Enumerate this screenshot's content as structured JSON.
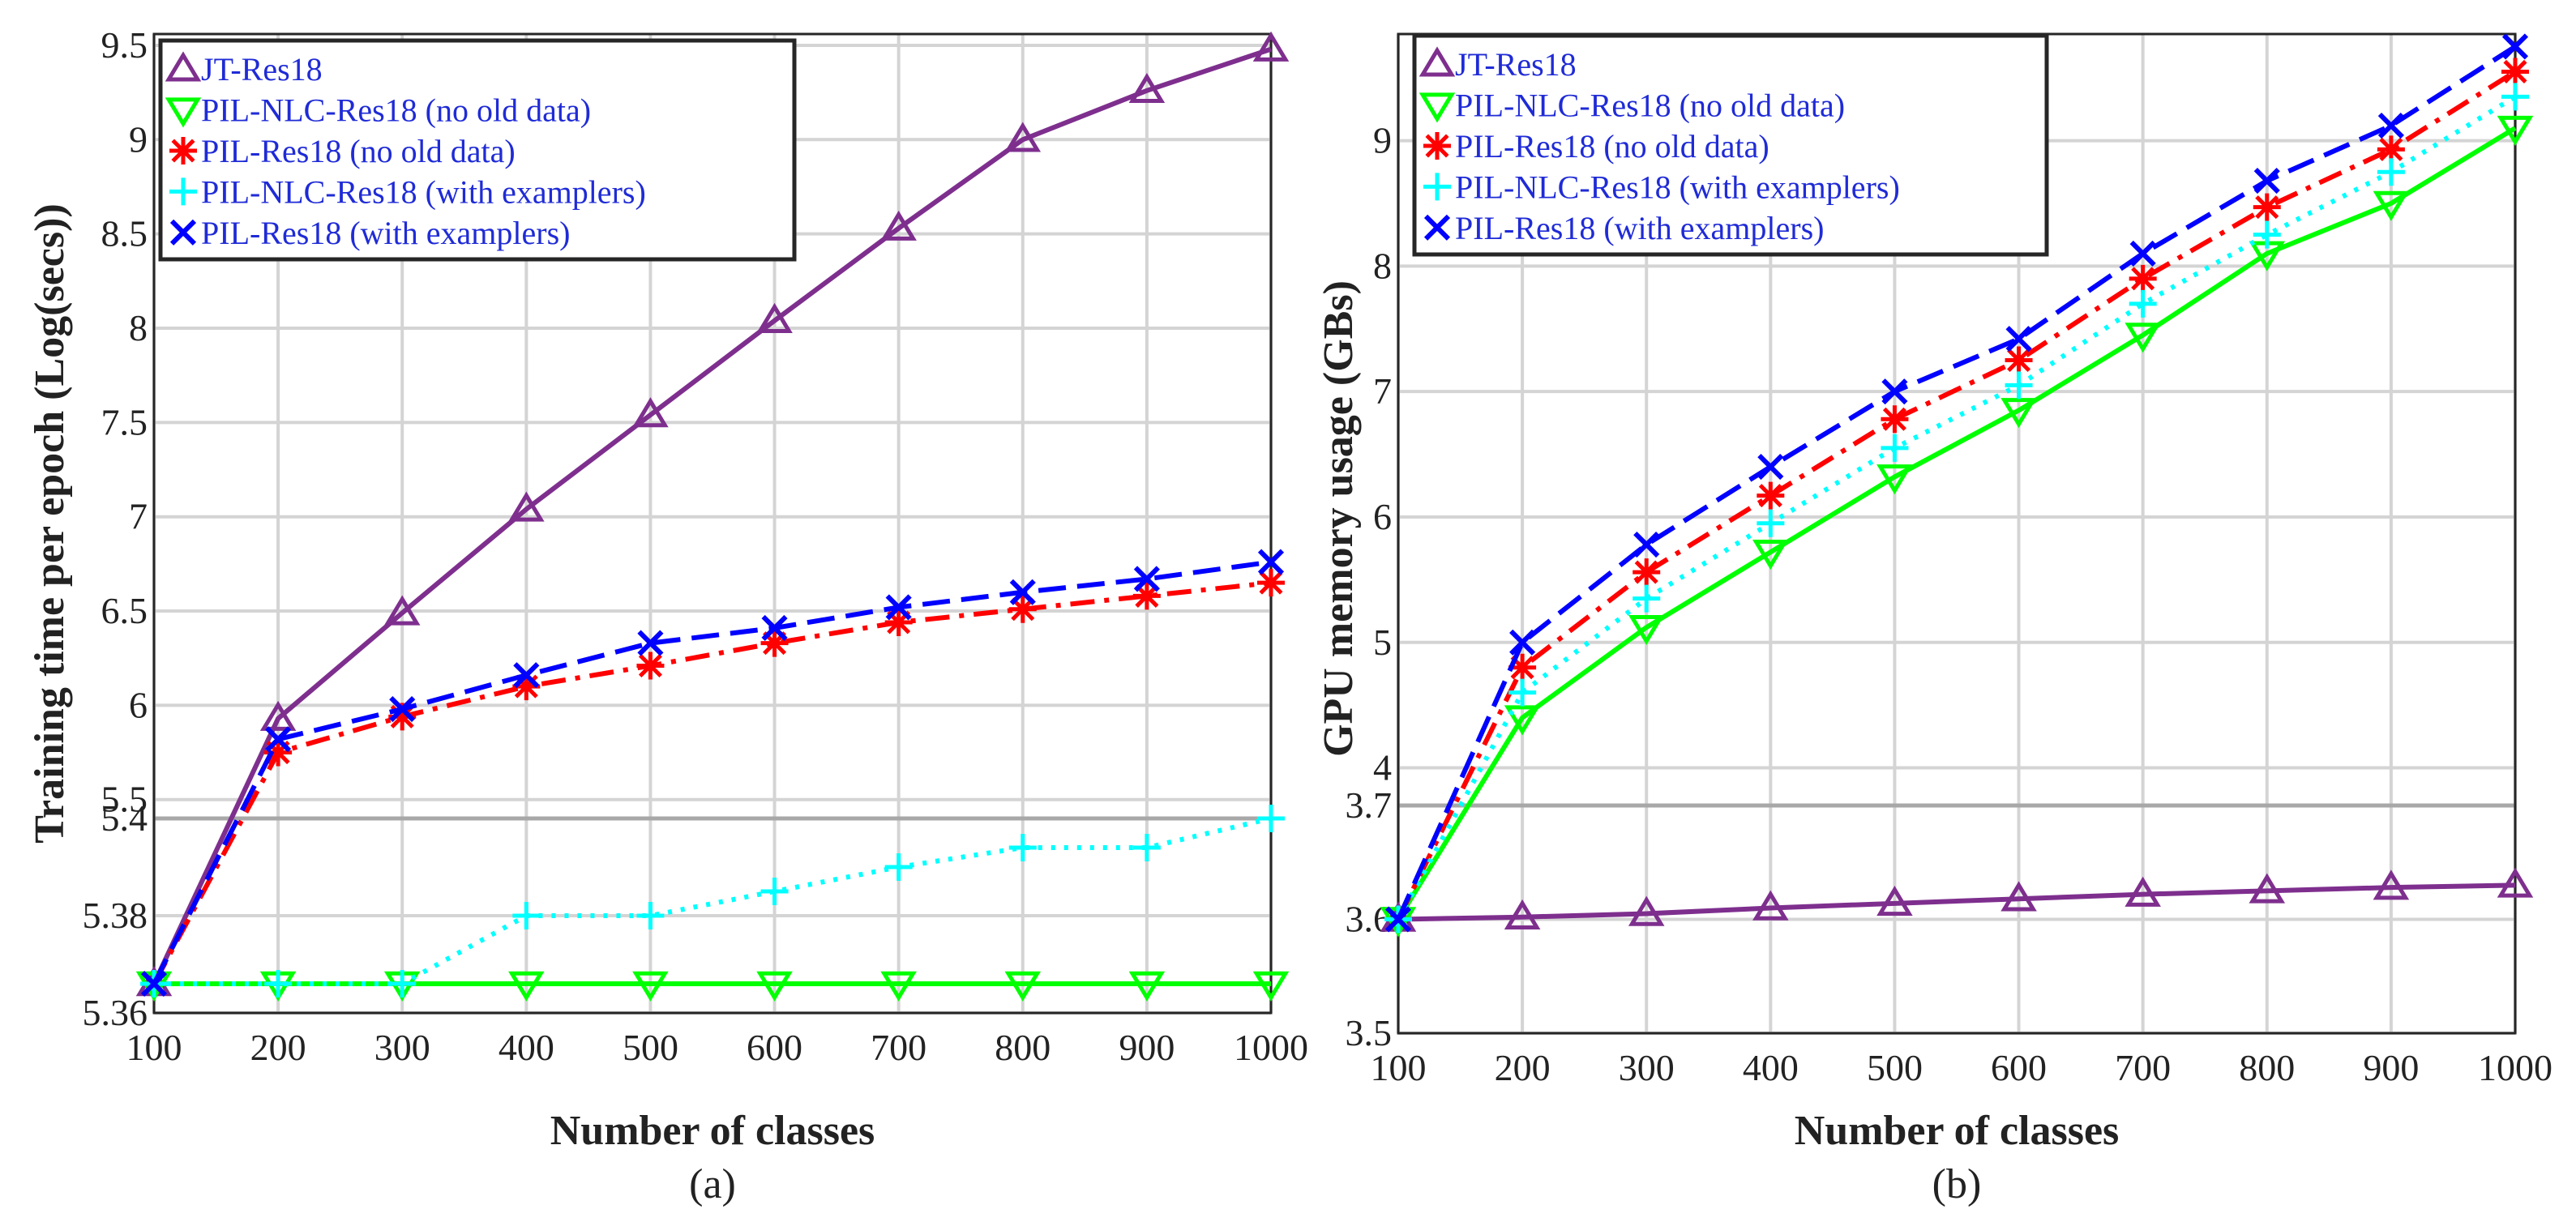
{
  "chart_data": [
    {
      "type": "line",
      "panel": "a",
      "caption": "(a)",
      "xlabel": "Number of classes",
      "ylabel": "Training time per epoch (Log(secs))",
      "x": [
        100,
        200,
        300,
        400,
        500,
        600,
        700,
        800,
        900,
        1000
      ],
      "x_tick_labels": [
        "100",
        "200",
        "300",
        "400",
        "500",
        "600",
        "700",
        "800",
        "900",
        "1000"
      ],
      "y_axis": "broken",
      "y_lower_tick_labels": [
        "5.36",
        "5.38",
        "5.4"
      ],
      "y_upper_tick_labels": [
        "5.5",
        "6",
        "6.5",
        "7",
        "7.5",
        "8",
        "8.5",
        "9",
        "9.5"
      ],
      "grid": true,
      "legend_position": "top-left",
      "series": [
        {
          "name": "JT-Res18",
          "color": "#7e2f8e",
          "marker": "triangle-up",
          "dash": "solid",
          "values": [
            5.366,
            5.93,
            6.49,
            7.04,
            7.54,
            8.04,
            8.53,
            9.0,
            9.26,
            9.48
          ]
        },
        {
          "name": "PIL-NLC-Res18 (no old data)",
          "color": "#00ff00",
          "marker": "triangle-down",
          "dash": "solid",
          "values": [
            5.366,
            5.366,
            5.366,
            5.366,
            5.366,
            5.366,
            5.366,
            5.366,
            5.366,
            5.366
          ]
        },
        {
          "name": "PIL-Res18 (no old data)",
          "color": "#ff0000",
          "marker": "asterisk",
          "dash": "dashdot",
          "values": [
            5.366,
            5.75,
            5.94,
            6.1,
            6.21,
            6.33,
            6.44,
            6.51,
            6.58,
            6.65
          ]
        },
        {
          "name": "PIL-NLC-Res18 (with examplers)",
          "color": "#00ffff",
          "marker": "plus",
          "dash": "dotted",
          "values": [
            5.366,
            5.366,
            5.366,
            5.38,
            5.38,
            5.385,
            5.39,
            5.394,
            5.394,
            5.4
          ]
        },
        {
          "name": "PIL-Res18 (with examplers)",
          "color": "#0000ff",
          "marker": "x",
          "dash": "dashed",
          "values": [
            5.366,
            5.82,
            5.98,
            6.16,
            6.33,
            6.41,
            6.52,
            6.6,
            6.67,
            6.76
          ]
        }
      ]
    },
    {
      "type": "line",
      "panel": "b",
      "caption": "(b)",
      "xlabel": "Number of classes",
      "ylabel": "GPU memory usage (GBs)",
      "x": [
        100,
        200,
        300,
        400,
        500,
        600,
        700,
        800,
        900,
        1000
      ],
      "x_tick_labels": [
        "100",
        "200",
        "300",
        "400",
        "500",
        "600",
        "700",
        "800",
        "900",
        "1000"
      ],
      "y_axis": "broken",
      "y_lower_tick_labels": [
        "3.5",
        "3.6",
        "3.7"
      ],
      "y_upper_tick_labels": [
        "4",
        "5",
        "6",
        "7",
        "8",
        "9"
      ],
      "grid": true,
      "legend_position": "top-left",
      "series": [
        {
          "name": "JT-Res18",
          "color": "#7e2f8e",
          "marker": "triangle-up",
          "dash": "solid",
          "values": [
            3.6,
            3.602,
            3.605,
            3.61,
            3.614,
            3.618,
            3.622,
            3.625,
            3.628,
            3.63
          ]
        },
        {
          "name": "PIL-NLC-Res18 (no old data)",
          "color": "#00ff00",
          "marker": "triangle-down",
          "dash": "solid",
          "values": [
            3.6,
            4.4,
            5.12,
            5.72,
            6.32,
            6.85,
            7.45,
            8.1,
            8.5,
            9.1
          ]
        },
        {
          "name": "PIL-Res18 (no old data)",
          "color": "#ff0000",
          "marker": "asterisk",
          "dash": "dashdot",
          "values": [
            3.6,
            4.8,
            5.56,
            6.17,
            6.78,
            7.25,
            7.9,
            8.47,
            8.93,
            9.55
          ]
        },
        {
          "name": "PIL-NLC-Res18 (with examplers)",
          "color": "#00ffff",
          "marker": "plus",
          "dash": "dotted",
          "values": [
            3.6,
            4.6,
            5.35,
            5.95,
            6.55,
            7.05,
            7.7,
            8.25,
            8.75,
            9.35
          ]
        },
        {
          "name": "PIL-Res18 (with examplers)",
          "color": "#0000ff",
          "marker": "x",
          "dash": "dashed",
          "values": [
            3.6,
            5.0,
            5.78,
            6.4,
            7.0,
            7.42,
            8.1,
            8.68,
            9.12,
            9.75
          ]
        }
      ]
    }
  ]
}
